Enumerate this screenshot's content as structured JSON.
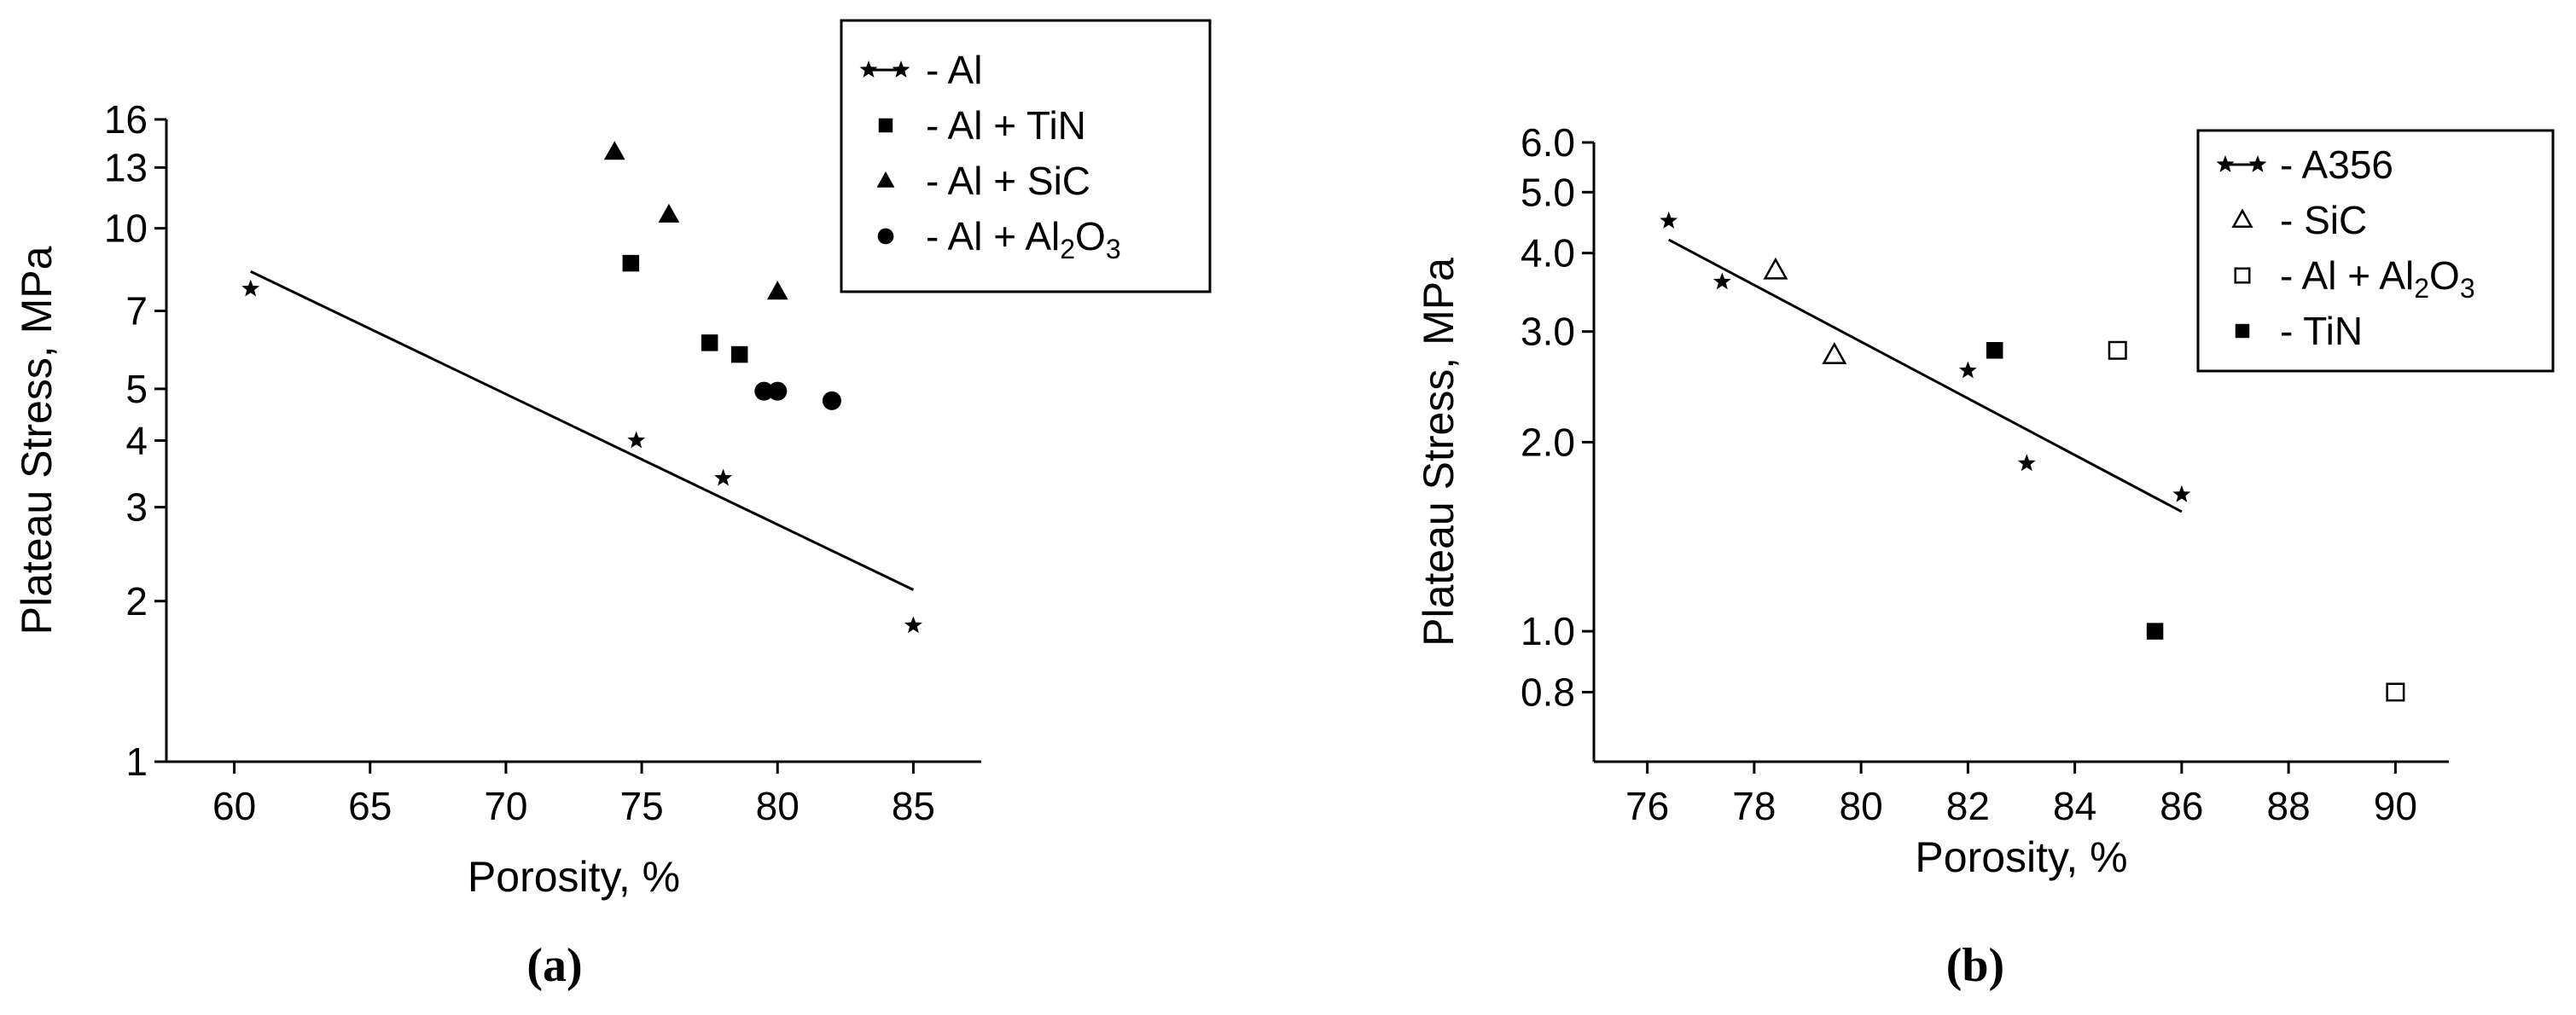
{
  "panels": [
    {
      "caption": "(a)",
      "legend_sub": "2",
      "legend_sub2": "3"
    },
    {
      "caption": "(b)",
      "legend_sub": "2",
      "legend_sub2": "3"
    }
  ],
  "chart_data": [
    {
      "type": "scatter",
      "title": "",
      "xlabel": "Porosity, %",
      "ylabel": "Plateau Stress, MPa",
      "xlim": [
        57.5,
        87.5
      ],
      "ylim": [
        1,
        16
      ],
      "yscale": "log",
      "xticks": [
        60,
        65,
        70,
        75,
        80,
        85
      ],
      "xtick_labels": [
        "60",
        "65",
        "70",
        "75",
        "80",
        "85"
      ],
      "yticks": [
        1,
        2,
        3,
        4,
        5,
        7,
        10,
        13,
        16
      ],
      "ytick_labels": [
        "1",
        "2",
        "3",
        "4",
        "5",
        "7",
        "10",
        "13",
        "16"
      ],
      "legend_position": "top-right",
      "series": [
        {
          "name": "- Al",
          "marker": "star-line",
          "x": [
            60.6,
            74.8,
            78.0,
            85.0
          ],
          "y": [
            7.7,
            4.0,
            3.4,
            1.8
          ]
        },
        {
          "name": "- Al + TiN",
          "marker": "square",
          "x": [
            74.6,
            77.5,
            78.6
          ],
          "y": [
            8.6,
            6.1,
            5.8
          ]
        },
        {
          "name": "- Al + SiC",
          "marker": "triangle",
          "x": [
            74.0,
            76.0,
            80.0
          ],
          "y": [
            13.9,
            10.6,
            7.6
          ]
        },
        {
          "name": "- Al + Al",
          "marker": "circle",
          "x": [
            79.5,
            80.0,
            82.0
          ],
          "y": [
            4.95,
            4.95,
            4.75
          ]
        }
      ],
      "trendline": {
        "x": [
          60.6,
          85.0
        ],
        "y": [
          8.3,
          2.1
        ]
      }
    },
    {
      "type": "scatter",
      "title": "",
      "xlabel": "Porosity, %",
      "ylabel": "Plateau Stress, MPa",
      "xlim": [
        75,
        91
      ],
      "ylim": [
        0.62,
        6.0
      ],
      "yscale": "log",
      "xticks": [
        76,
        78,
        80,
        82,
        84,
        86,
        88,
        90
      ],
      "xtick_labels": [
        "76",
        "78",
        "80",
        "82",
        "84",
        "86",
        "88",
        "90"
      ],
      "yticks": [
        0.8,
        1.0,
        2.0,
        3.0,
        4.0,
        5.0,
        6.0
      ],
      "ytick_labels": [
        "0.8",
        "1.0",
        "2.0",
        "3.0",
        "4.0",
        "5.0",
        "6.0"
      ],
      "legend_position": "top-right",
      "series": [
        {
          "name": "- A356",
          "marker": "star-line",
          "x": [
            76.4,
            77.4,
            82.0,
            83.1,
            86.0
          ],
          "y": [
            4.5,
            3.6,
            2.6,
            1.85,
            1.65
          ]
        },
        {
          "name": "- SiC",
          "marker": "open-triangle",
          "x": [
            78.4,
            79.5
          ],
          "y": [
            3.75,
            2.75
          ]
        },
        {
          "name": "- Al + Al",
          "marker": "open-square",
          "x": [
            84.8,
            90.0
          ],
          "y": [
            2.8,
            0.8
          ]
        },
        {
          "name": "- TiN",
          "marker": "square",
          "x": [
            82.5,
            85.5
          ],
          "y": [
            2.8,
            1.0
          ]
        }
      ],
      "trendline": {
        "x": [
          76.4,
          86.0
        ],
        "y": [
          4.2,
          1.55
        ]
      }
    }
  ]
}
